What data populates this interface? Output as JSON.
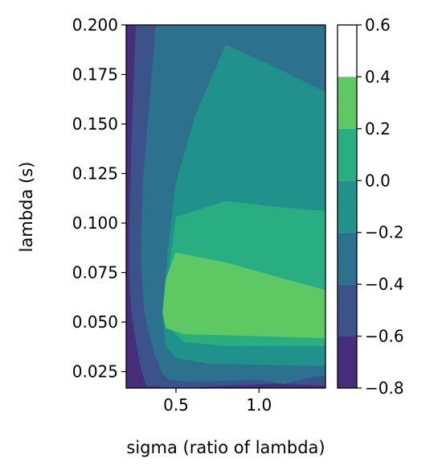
{
  "chart_data": {
    "type": "contour",
    "title": "",
    "xlabel": "sigma (ratio of lambda)",
    "ylabel": "lambda (s)",
    "xlim": [
      0.2,
      1.4
    ],
    "ylim": [
      0.0167,
      0.2
    ],
    "xticks": [
      0.5,
      1.0
    ],
    "xtick_labels": [
      "0.5",
      "1.0"
    ],
    "yticks": [
      0.025,
      0.05,
      0.075,
      0.1,
      0.125,
      0.15,
      0.175,
      0.2
    ],
    "ytick_labels": [
      "0.025",
      "0.050",
      "0.075",
      "0.100",
      "0.125",
      "0.150",
      "0.175",
      "0.200"
    ],
    "colorbar": {
      "levels": [
        -0.8,
        -0.6,
        -0.4,
        -0.2,
        0.0,
        0.2,
        0.4,
        0.6
      ],
      "tick_labels": [
        "−0.8",
        "−0.6",
        "−0.4",
        "−0.2",
        "0.0",
        "0.2",
        "0.4",
        "0.6"
      ],
      "colors": [
        "#472d7b",
        "#3b528b",
        "#2c728e",
        "#21918c",
        "#28ae80",
        "#5ec962"
      ]
    },
    "regions": [
      {
        "level_range": [
          -0.8,
          -0.6
        ],
        "color": "#472d7b",
        "polygon": [
          [
            0.2,
            0.2
          ],
          [
            0.26,
            0.2
          ],
          [
            0.24,
            0.16
          ],
          [
            0.22,
            0.1
          ],
          [
            0.22,
            0.07
          ],
          [
            0.24,
            0.05
          ],
          [
            0.28,
            0.03
          ],
          [
            0.32,
            0.018
          ],
          [
            0.5,
            0.0167
          ],
          [
            1.4,
            0.0167
          ],
          [
            1.4,
            0.018
          ],
          [
            1.1,
            0.019
          ],
          [
            0.7,
            0.0175
          ],
          [
            0.2,
            0.0167
          ]
        ]
      },
      {
        "level_range": [
          -0.6,
          -0.4
        ],
        "color": "#3b528b",
        "polygon": [
          [
            0.26,
            0.2
          ],
          [
            0.38,
            0.2
          ],
          [
            0.34,
            0.16
          ],
          [
            0.3,
            0.12
          ],
          [
            0.29,
            0.08
          ],
          [
            0.31,
            0.055
          ],
          [
            0.37,
            0.034
          ],
          [
            0.42,
            0.024
          ],
          [
            0.46,
            0.021
          ],
          [
            0.6,
            0.02
          ],
          [
            1.0,
            0.021
          ],
          [
            1.15,
            0.019
          ],
          [
            1.3,
            0.022
          ],
          [
            1.4,
            0.023
          ],
          [
            1.4,
            0.018
          ],
          [
            1.1,
            0.019
          ],
          [
            0.7,
            0.0175
          ],
          [
            0.5,
            0.0167
          ],
          [
            0.32,
            0.018
          ],
          [
            0.28,
            0.03
          ],
          [
            0.24,
            0.05
          ],
          [
            0.22,
            0.07
          ],
          [
            0.22,
            0.1
          ],
          [
            0.24,
            0.16
          ]
        ]
      },
      {
        "level_range": [
          -0.4,
          -0.2
        ],
        "color": "#2c728e",
        "polygon": [
          [
            0.38,
            0.2
          ],
          [
            1.4,
            0.2
          ],
          [
            1.4,
            0.166
          ],
          [
            1.11,
            0.178
          ],
          [
            0.8,
            0.19
          ],
          [
            0.62,
            0.155
          ],
          [
            0.5,
            0.12
          ],
          [
            0.45,
            0.085
          ],
          [
            0.42,
            0.052
          ],
          [
            0.44,
            0.038
          ],
          [
            0.5,
            0.032
          ],
          [
            0.7,
            0.029
          ],
          [
            1.4,
            0.028
          ],
          [
            1.4,
            0.023
          ],
          [
            1.3,
            0.022
          ],
          [
            1.15,
            0.019
          ],
          [
            1.0,
            0.021
          ],
          [
            0.6,
            0.02
          ],
          [
            0.46,
            0.021
          ],
          [
            0.42,
            0.024
          ],
          [
            0.37,
            0.034
          ],
          [
            0.31,
            0.055
          ],
          [
            0.29,
            0.08
          ],
          [
            0.3,
            0.12
          ],
          [
            0.34,
            0.16
          ]
        ]
      },
      {
        "level_range": [
          -0.2,
          0.0
        ],
        "color": "#21918c",
        "polygon": [
          [
            0.8,
            0.19
          ],
          [
            1.11,
            0.178
          ],
          [
            1.4,
            0.166
          ],
          [
            1.4,
            0.106
          ],
          [
            1.11,
            0.108
          ],
          [
            0.8,
            0.111
          ],
          [
            0.5,
            0.103
          ],
          [
            0.45,
            0.07
          ],
          [
            0.45,
            0.048
          ],
          [
            0.55,
            0.04
          ],
          [
            0.8,
            0.038
          ],
          [
            1.4,
            0.038
          ],
          [
            1.4,
            0.028
          ],
          [
            0.7,
            0.029
          ],
          [
            0.5,
            0.032
          ],
          [
            0.44,
            0.038
          ],
          [
            0.42,
            0.052
          ],
          [
            0.45,
            0.085
          ],
          [
            0.5,
            0.12
          ],
          [
            0.62,
            0.155
          ]
        ]
      },
      {
        "level_range": [
          0.0,
          0.2
        ],
        "color": "#28ae80",
        "polygon": [
          [
            0.5,
            0.103
          ],
          [
            0.8,
            0.111
          ],
          [
            1.11,
            0.108
          ],
          [
            1.4,
            0.106
          ],
          [
            1.4,
            0.066
          ],
          [
            1.1,
            0.073
          ],
          [
            0.8,
            0.08
          ],
          [
            0.5,
            0.085
          ],
          [
            0.44,
            0.072
          ],
          [
            0.42,
            0.055
          ],
          [
            0.44,
            0.047
          ],
          [
            0.55,
            0.044
          ],
          [
            1.0,
            0.043
          ],
          [
            1.4,
            0.042
          ],
          [
            1.4,
            0.038
          ],
          [
            0.8,
            0.038
          ],
          [
            0.55,
            0.04
          ],
          [
            0.45,
            0.048
          ],
          [
            0.45,
            0.07
          ]
        ]
      },
      {
        "level_range": [
          0.2,
          0.4
        ],
        "color": "#5ec962",
        "polygon": [
          [
            0.5,
            0.085
          ],
          [
            0.8,
            0.08
          ],
          [
            1.1,
            0.073
          ],
          [
            1.4,
            0.066
          ],
          [
            1.4,
            0.042
          ],
          [
            1.0,
            0.043
          ],
          [
            0.55,
            0.044
          ],
          [
            0.44,
            0.047
          ],
          [
            0.42,
            0.055
          ],
          [
            0.44,
            0.072
          ]
        ]
      },
      {
        "level_range": [
          0.4,
          0.6
        ],
        "color": "#5ec962",
        "polygon": [
          [
            0.5,
            0.072
          ],
          [
            0.8,
            0.068
          ],
          [
            1.1,
            0.063
          ],
          [
            1.4,
            0.057
          ],
          [
            1.4,
            0.048
          ],
          [
            1.0,
            0.047
          ],
          [
            0.6,
            0.048
          ],
          [
            0.48,
            0.049
          ],
          [
            0.45,
            0.054
          ],
          [
            0.46,
            0.065
          ]
        ]
      }
    ]
  }
}
